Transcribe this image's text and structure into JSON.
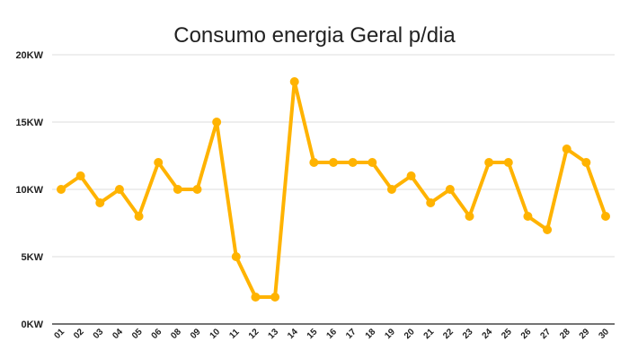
{
  "chart_data": {
    "type": "line",
    "title": "Consumo energia Geral p/dia",
    "xlabel": "",
    "ylabel": "",
    "categories": [
      "01",
      "02",
      "03",
      "04",
      "05",
      "06",
      "08",
      "09",
      "10",
      "11",
      "12",
      "13",
      "14",
      "15",
      "16",
      "17",
      "18",
      "19",
      "20",
      "21",
      "22",
      "23",
      "24",
      "25",
      "26",
      "27",
      "28",
      "29",
      "30"
    ],
    "series": [
      {
        "values": [
          10,
          11,
          9,
          10,
          8,
          12,
          10,
          10,
          15,
          5,
          2,
          2,
          18,
          12,
          12,
          12,
          12,
          10,
          11,
          9,
          10,
          8,
          12,
          12,
          8,
          7,
          13,
          12,
          8
        ]
      }
    ],
    "y_ticks": [
      "0KW",
      "5KW",
      "10KW",
      "15KW",
      "20KW"
    ],
    "ylim": [
      0,
      20
    ],
    "grid": "horizontal",
    "legend": "none",
    "colors": {
      "line": "#FFB300",
      "grid": "#DDDDDD",
      "axis": "#222222"
    }
  }
}
